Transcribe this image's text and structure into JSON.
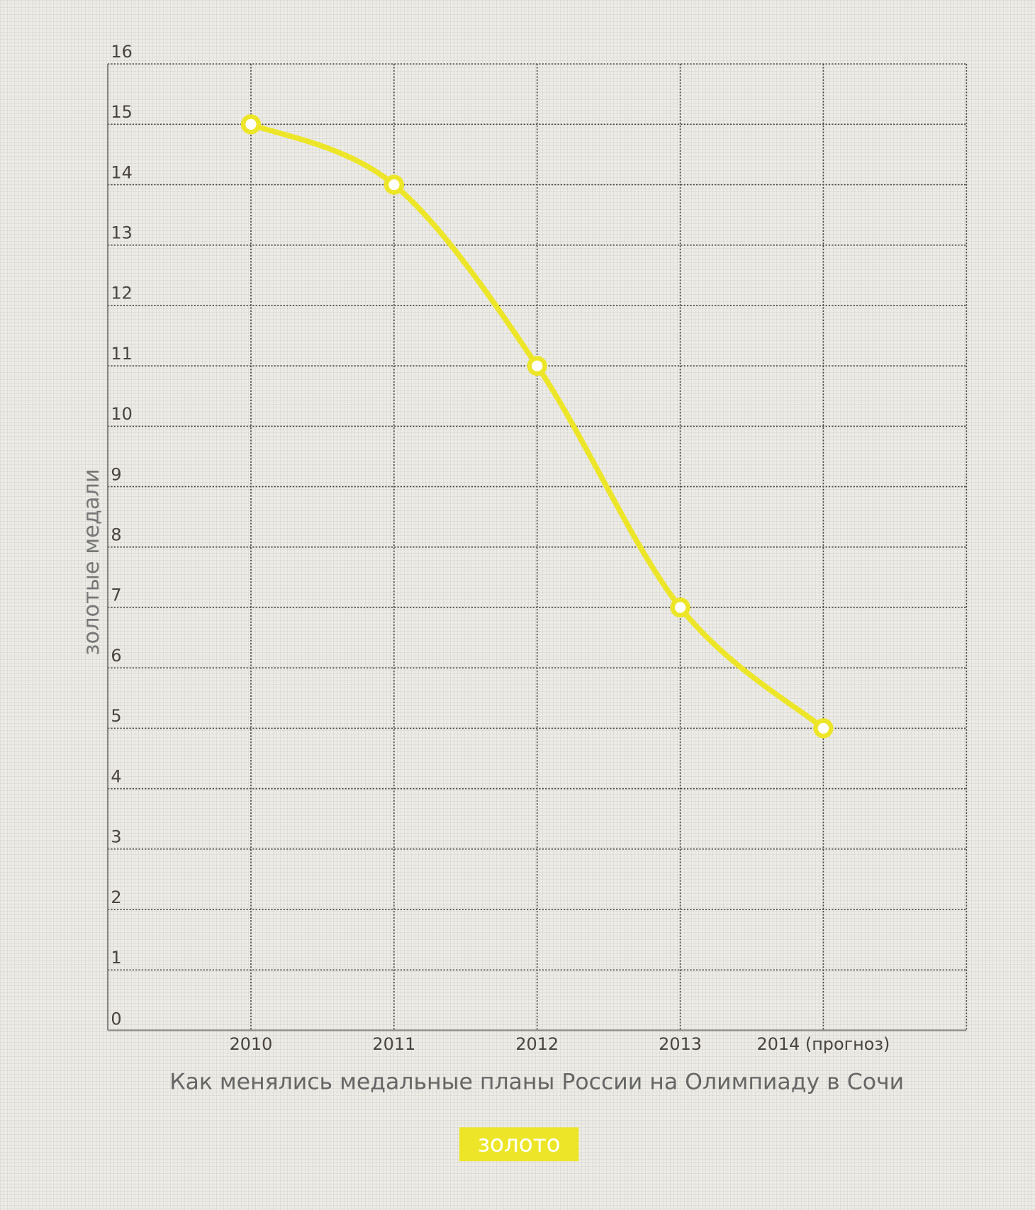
{
  "chart_data": {
    "type": "line",
    "xlabel": "Как менялись медальные планы России на Олимпиаду в Сочи",
    "ylabel": "золотые медали",
    "categories": [
      "2010",
      "2011",
      "2012",
      "2013",
      "2014 (прогноз)"
    ],
    "series": [
      {
        "name": "золото",
        "color": "#ede628",
        "values": [
          15,
          14,
          11,
          7,
          5
        ]
      }
    ],
    "ylim": [
      0,
      16
    ],
    "yticks": [
      0,
      1,
      2,
      3,
      4,
      5,
      6,
      7,
      8,
      9,
      10,
      11,
      12,
      13,
      14,
      15,
      16
    ],
    "grid": true,
    "legend": "bottom"
  }
}
